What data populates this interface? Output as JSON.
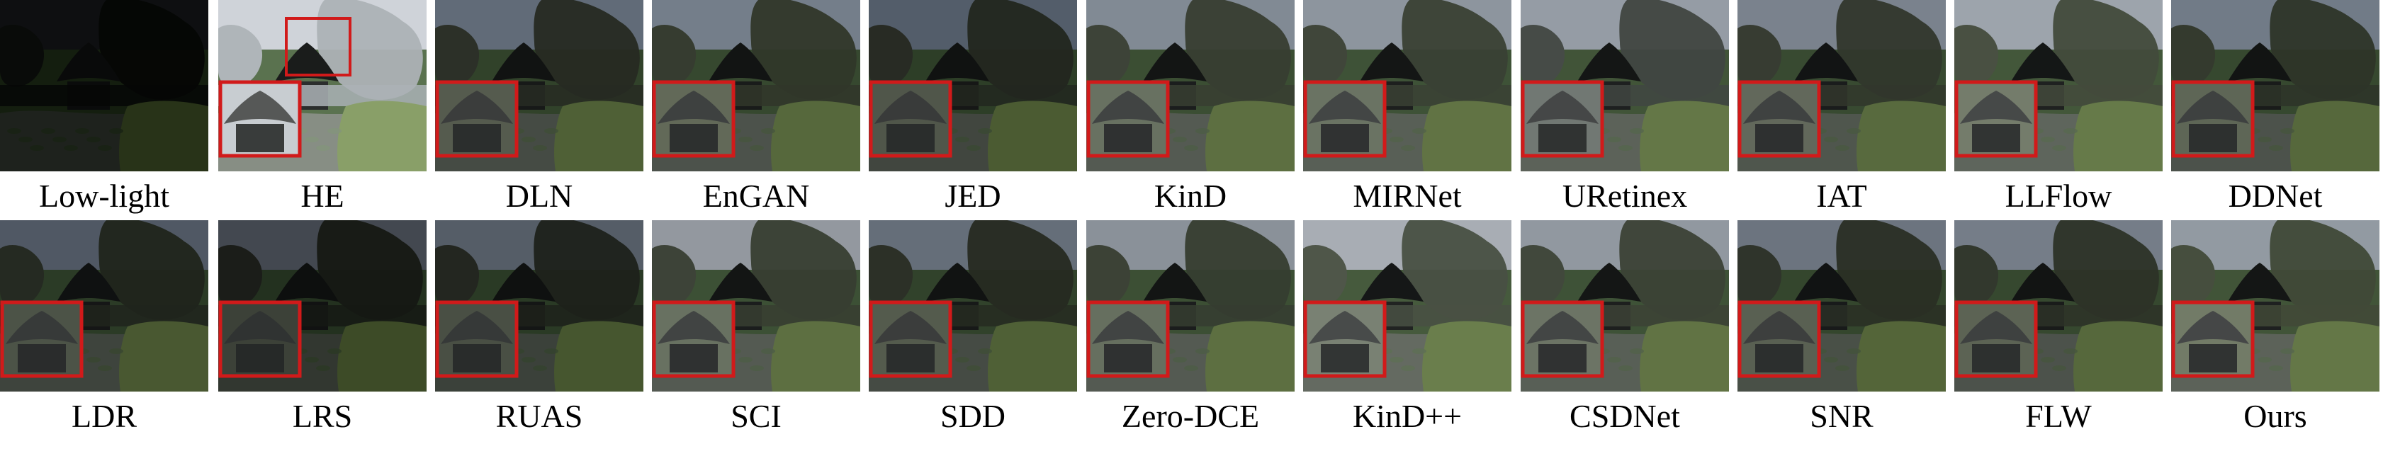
{
  "figure": {
    "rows": [
      {
        "panels": [
          {
            "label": "Low-light",
            "brightness": 0.12,
            "tint": "#101410",
            "sky": "#2a2e33",
            "inset": false,
            "marker": false
          },
          {
            "label": "HE",
            "brightness": 0.85,
            "tint": "#b9c0c4",
            "sky": "#dfe3ea",
            "inset": true,
            "marker": true
          },
          {
            "label": "DLN",
            "brightness": 0.45,
            "tint": "#3f4638",
            "sky": "#9fb0c4",
            "inset": true,
            "marker": false
          },
          {
            "label": "EnGAN",
            "brightness": 0.5,
            "tint": "#4b5440",
            "sky": "#b3c2d4",
            "inset": true,
            "marker": false
          },
          {
            "label": "JED",
            "brightness": 0.42,
            "tint": "#3b4235",
            "sky": "#8fa0b6",
            "inset": true,
            "marker": false
          },
          {
            "label": "KinD",
            "brightness": 0.55,
            "tint": "#505a48",
            "sky": "#bcc8d7",
            "inset": true,
            "marker": false
          },
          {
            "label": "MIRNet",
            "brightness": 0.58,
            "tint": "#515b49",
            "sky": "#c6d1de",
            "inset": true,
            "marker": false
          },
          {
            "label": "URetinex",
            "brightness": 0.6,
            "tint": "#58605a",
            "sky": "#ccd6e3",
            "inset": true,
            "marker": false
          },
          {
            "label": "IAT",
            "brightness": 0.52,
            "tint": "#4a5242",
            "sky": "#b7c4d4",
            "inset": true,
            "marker": false
          },
          {
            "label": "LLFlow",
            "brightness": 0.62,
            "tint": "#5a6450",
            "sky": "#d3dce7",
            "inset": true,
            "marker": false
          },
          {
            "label": "DDNet",
            "brightness": 0.5,
            "tint": "#47503e",
            "sky": "#aebdcf",
            "inset": true,
            "marker": false
          }
        ]
      },
      {
        "panels": [
          {
            "label": "LDR",
            "brightness": 0.4,
            "tint": "#384032",
            "sky": "#8d9bb0",
            "inset": true,
            "marker": false
          },
          {
            "label": "LRS",
            "brightness": 0.3,
            "tint": "#2c3228",
            "sky": "#8993a3",
            "inset": true,
            "marker": false
          },
          {
            "label": "RUAS",
            "brightness": 0.38,
            "tint": "#363c30",
            "sky": "#9aa8bb",
            "inset": true,
            "marker": false
          },
          {
            "label": "SCI",
            "brightness": 0.55,
            "tint": "#505a48",
            "sky": "#d6dde6",
            "inset": true,
            "marker": false
          },
          {
            "label": "SDD",
            "brightness": 0.45,
            "tint": "#3e4636",
            "sky": "#a6b4c6",
            "inset": true,
            "marker": false
          },
          {
            "label": "Zero-DCE",
            "brightness": 0.55,
            "tint": "#4e5846",
            "sky": "#c8d2de",
            "inset": true,
            "marker": false
          },
          {
            "label": "KinD++",
            "brightness": 0.65,
            "tint": "#5f6858",
            "sky": "#dbe2ea",
            "inset": true,
            "marker": false
          },
          {
            "label": "CSDNet",
            "brightness": 0.58,
            "tint": "#535d4b",
            "sky": "#cbd5e1",
            "inset": true,
            "marker": false
          },
          {
            "label": "SNR",
            "brightness": 0.48,
            "tint": "#424a3a",
            "sky": "#aab7c8",
            "inset": true,
            "marker": false
          },
          {
            "label": "FLW",
            "brightness": 0.5,
            "tint": "#454d3c",
            "sky": "#b4c1d1",
            "inset": true,
            "marker": false
          },
          {
            "label": "Ours",
            "brightness": 0.6,
            "tint": "#59644c",
            "sky": "#c9d4df",
            "inset": true,
            "marker": false
          }
        ]
      }
    ],
    "colors": {
      "inset_border": "#d11a1a",
      "foliage": "#3a5a2a",
      "foliage_light": "#6f8f3f",
      "roof": "#1c1f1e",
      "water": "#4e5a4a"
    }
  }
}
